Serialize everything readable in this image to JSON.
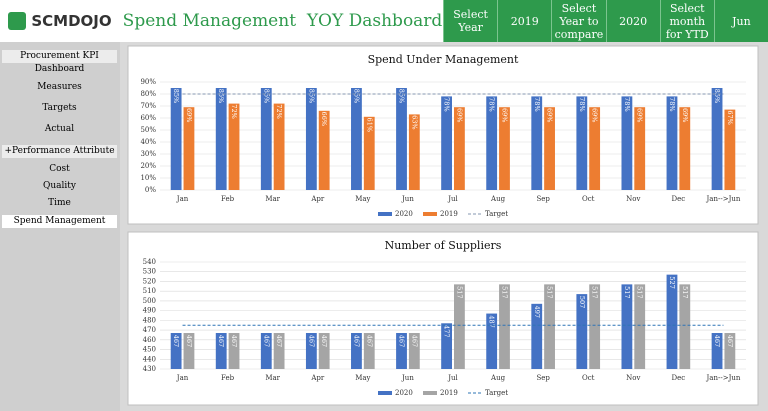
{
  "header": {
    "logo": "SCMDOJO",
    "title": "Spend Management  YOY Dashboard",
    "controls": [
      {
        "label": "Select Year",
        "value": "2019"
      },
      {
        "label": "Select Year to compare",
        "value": "2020"
      },
      {
        "label": "Select month for YTD",
        "value": "Jun"
      }
    ]
  },
  "sidebar": {
    "title": "Procurement KPI Dashboard",
    "items": [
      "Measures",
      "Targets",
      "Actual",
      "+Performance Attribute",
      "Cost",
      "Quality",
      "Time",
      "Spend Management"
    ]
  },
  "chart_data": [
    {
      "type": "bar",
      "title": "Spend Under Management",
      "categories": [
        "Jan",
        "Feb",
        "Mar",
        "Apr",
        "May",
        "Jun",
        "Jul",
        "Aug",
        "Sep",
        "Oct",
        "Nov",
        "Dec",
        "Jan-->Jun"
      ],
      "series": [
        {
          "name": "2020",
          "color": "#4472c4",
          "values": [
            85,
            85,
            85,
            85,
            85,
            85,
            78,
            78,
            78,
            78,
            78,
            78,
            85
          ],
          "value_labels": [
            "85%",
            "85%",
            "85%",
            "85%",
            "85%",
            "85%",
            "78%",
            "78%",
            "78%",
            "78%",
            "78%",
            "78%",
            "85%"
          ]
        },
        {
          "name": "2019",
          "color": "#ed7d31",
          "values": [
            69,
            72,
            72,
            66,
            61,
            63,
            69,
            69,
            69,
            69,
            69,
            69,
            67
          ],
          "value_labels": [
            "69%",
            "72%",
            "72%",
            "66%",
            "61%",
            "63%",
            "69%",
            "69%",
            "69%",
            "69%",
            "69%",
            "69%",
            "67%"
          ]
        },
        {
          "name": "Target",
          "color": "#8497b0",
          "line": "dashed",
          "values": [
            80,
            80,
            80,
            80,
            80,
            80,
            80,
            80,
            80,
            80,
            80,
            80,
            80
          ]
        }
      ],
      "ylim": [
        0,
        90
      ],
      "yticks": [
        {
          "value": 0,
          "label": "0%"
        },
        {
          "value": 10,
          "label": "10%"
        },
        {
          "value": 20,
          "label": "20%"
        },
        {
          "value": 30,
          "label": "30%"
        },
        {
          "value": 40,
          "label": "40%"
        },
        {
          "value": 50,
          "label": "50%"
        },
        {
          "value": 60,
          "label": "60%"
        },
        {
          "value": 70,
          "label": "70%"
        },
        {
          "value": 80,
          "label": "80%"
        },
        {
          "value": 90,
          "label": "90%"
        }
      ],
      "grid": true
    },
    {
      "type": "bar",
      "title": "Number of Suppliers",
      "categories": [
        "Jan",
        "Feb",
        "Mar",
        "Apr",
        "May",
        "Jun",
        "Jul",
        "Aug",
        "Sep",
        "Oct",
        "Nov",
        "Dec",
        "Jan-->Jun"
      ],
      "series": [
        {
          "name": "2020",
          "color": "#4472c4",
          "values": [
            467,
            467,
            467,
            467,
            467,
            467,
            477,
            487,
            497,
            507,
            517,
            527,
            467
          ]
        },
        {
          "name": "2019",
          "color": "#a5a5a5",
          "values": [
            467,
            467,
            467,
            467,
            467,
            467,
            517,
            517,
            517,
            517,
            517,
            517,
            467
          ]
        },
        {
          "name": "Target",
          "color": "#2e75b6",
          "line": "dashed",
          "values": [
            475,
            475,
            475,
            475,
            475,
            475,
            475,
            475,
            475,
            475,
            475,
            475,
            475
          ]
        }
      ],
      "ylim": [
        430,
        540
      ],
      "yticks": [
        430,
        440,
        450,
        460,
        470,
        480,
        490,
        500,
        510,
        520,
        530,
        540
      ],
      "grid": true
    }
  ]
}
